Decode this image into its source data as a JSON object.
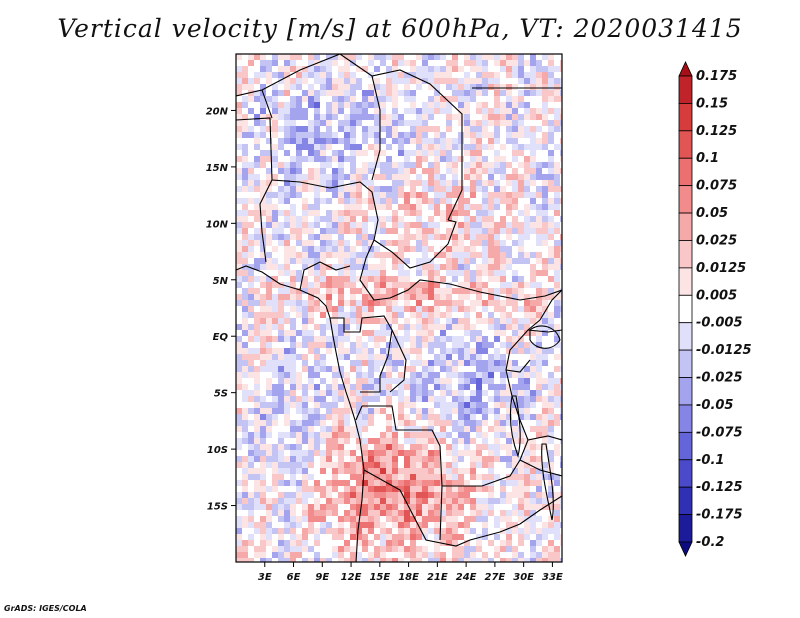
{
  "title": "Vertical velocity [m/s] at 600hPa, VT: 2020031415",
  "footer": "GrADS: IGES/COLA",
  "map": {
    "lat_labels": [
      "20N",
      "15N",
      "10N",
      "5N",
      "EQ",
      "5S",
      "10S",
      "15S"
    ],
    "lon_labels": [
      "3E",
      "6E",
      "9E",
      "12E",
      "15E",
      "18E",
      "21E",
      "24E",
      "27E",
      "30E",
      "33E"
    ],
    "lat_values": [
      20,
      15,
      10,
      5,
      0,
      -5,
      -10,
      -15
    ],
    "lon_values": [
      3,
      6,
      9,
      12,
      15,
      18,
      21,
      24,
      27,
      30,
      33
    ],
    "lat_range": [
      -20,
      25
    ],
    "lon_range": [
      0,
      34
    ]
  },
  "colorbar": {
    "labels": [
      "0.175",
      "0.15",
      "0.125",
      "0.1",
      "0.075",
      "0.05",
      "0.025",
      "0.0125",
      "0.005",
      "-0.005",
      "-0.0125",
      "-0.025",
      "-0.05",
      "-0.075",
      "-0.1",
      "-0.125",
      "-0.175",
      "-0.2"
    ],
    "colors": [
      "#a50f15",
      "#c1232b",
      "#d63c3c",
      "#e25555",
      "#ec7070",
      "#f28c8c",
      "#f6a9a9",
      "#f9c7c7",
      "#fce4e4",
      "#ffffff",
      "#e0e0fa",
      "#c4c4f4",
      "#a4a4ee",
      "#8585e6",
      "#6565da",
      "#4a4acb",
      "#3030b5",
      "#1c1c9a",
      "#0c0c80"
    ]
  }
}
